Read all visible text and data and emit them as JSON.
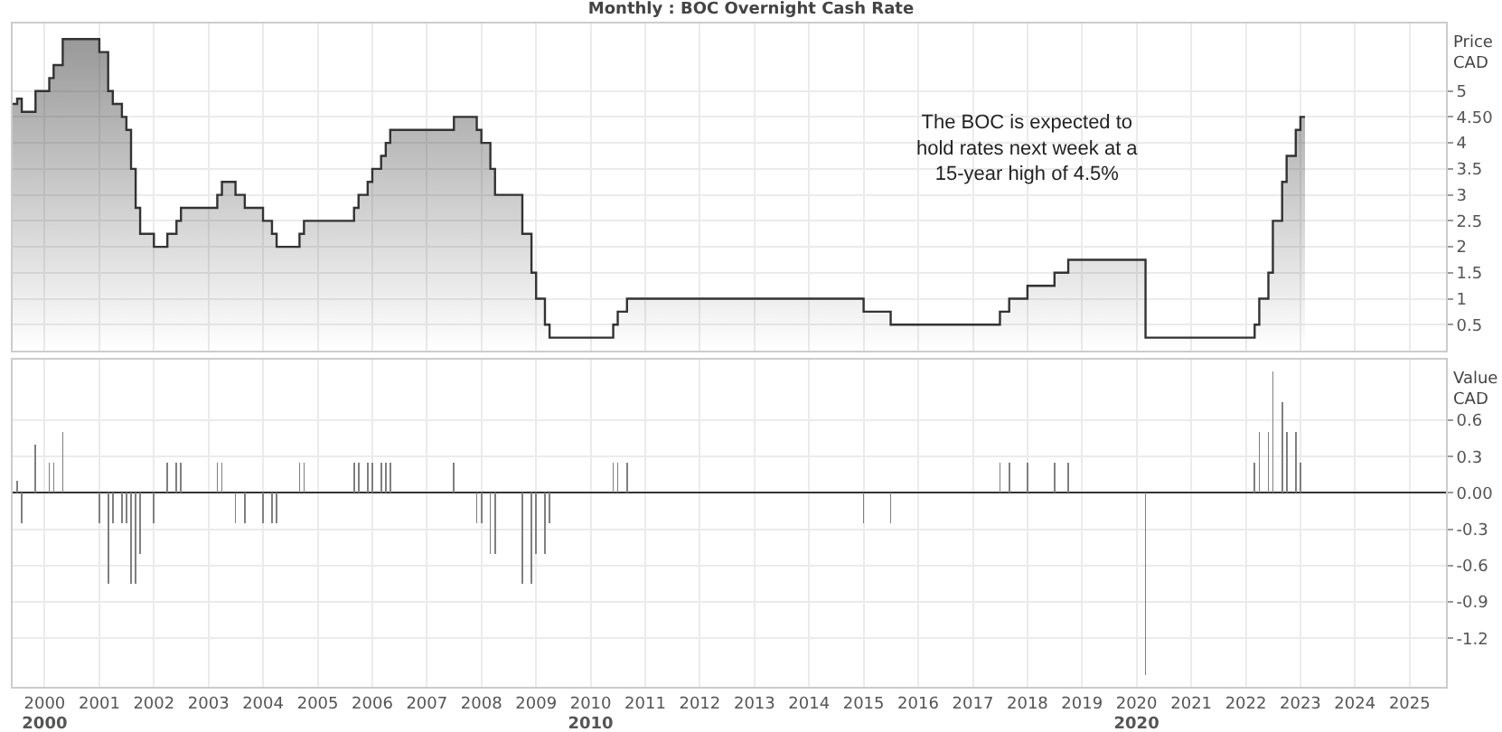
{
  "chart_data": [
    {
      "type": "area",
      "title": "Monthly : BOC Overnight Cash Rate",
      "ylabel": "Price\nCAD",
      "annotations": [
        "The BOC is expected to\nhold rates next week at a\n15-year high of 4.5%"
      ],
      "x": [
        "1999-06",
        "1999-07",
        "1999-07",
        "1999-08",
        "1999-08",
        "1999-11",
        "1999-11",
        "2000-02",
        "2000-02",
        "2000-03",
        "2000-03",
        "2000-05",
        "2000-05",
        "2001-01",
        "2001-01",
        "2001-03",
        "2001-03",
        "2001-04",
        "2001-04",
        "2001-06",
        "2001-06",
        "2001-07",
        "2001-07",
        "2001-08",
        "2001-08",
        "2001-09",
        "2001-09",
        "2001-10",
        "2001-10",
        "2002-01",
        "2002-01",
        "2002-04",
        "2002-04",
        "2002-06",
        "2002-06",
        "2002-07",
        "2002-07",
        "2003-03",
        "2003-03",
        "2003-04",
        "2003-04",
        "2003-07",
        "2003-07",
        "2003-09",
        "2003-09",
        "2004-01",
        "2004-01",
        "2004-03",
        "2004-03",
        "2004-04",
        "2004-04",
        "2004-09",
        "2004-09",
        "2004-10",
        "2004-10",
        "2005-09",
        "2005-09",
        "2005-10",
        "2005-10",
        "2005-12",
        "2005-12",
        "2006-01",
        "2006-01",
        "2006-03",
        "2006-03",
        "2006-04",
        "2006-04",
        "2006-05",
        "2006-05",
        "2007-07",
        "2007-07",
        "2007-12",
        "2007-12",
        "2008-01",
        "2008-01",
        "2008-03",
        "2008-03",
        "2008-04",
        "2008-04",
        "2008-10",
        "2008-10",
        "2008-12",
        "2008-12",
        "2009-01",
        "2009-01",
        "2009-03",
        "2009-03",
        "2009-04",
        "2009-04",
        "2010-06",
        "2010-06",
        "2010-07",
        "2010-07",
        "2010-09",
        "2010-09",
        "2015-01",
        "2015-01",
        "2015-07",
        "2015-07",
        "2017-07",
        "2017-07",
        "2017-09",
        "2017-09",
        "2018-01",
        "2018-01",
        "2018-07",
        "2018-07",
        "2018-10",
        "2018-10",
        "2020-03",
        "2020-03",
        "2022-03",
        "2022-03",
        "2022-04",
        "2022-04",
        "2022-06",
        "2022-06",
        "2022-07",
        "2022-07",
        "2022-09",
        "2022-09",
        "2022-10",
        "2022-10",
        "2022-12",
        "2022-12",
        "2023-01",
        "2023-01",
        "2023-02"
      ],
      "series": [
        {
          "color": "#333333",
          "values": [
            4.75,
            4.75,
            4.85,
            4.85,
            4.6,
            4.6,
            5.0,
            5.0,
            5.25,
            5.25,
            5.5,
            5.5,
            6.0,
            6.0,
            5.75,
            5.75,
            5.0,
            5.0,
            4.75,
            4.75,
            4.5,
            4.5,
            4.25,
            4.25,
            3.5,
            3.5,
            2.75,
            2.75,
            2.25,
            2.25,
            2.0,
            2.0,
            2.25,
            2.25,
            2.5,
            2.5,
            2.75,
            2.75,
            3.0,
            3.0,
            3.25,
            3.25,
            3.0,
            3.0,
            2.75,
            2.75,
            2.5,
            2.5,
            2.25,
            2.25,
            2.0,
            2.0,
            2.25,
            2.25,
            2.5,
            2.5,
            2.75,
            2.75,
            3.0,
            3.0,
            3.25,
            3.25,
            3.5,
            3.5,
            3.75,
            3.75,
            4.0,
            4.0,
            4.25,
            4.25,
            4.5,
            4.5,
            4.25,
            4.25,
            4.0,
            4.0,
            3.5,
            3.5,
            3.0,
            3.0,
            2.25,
            2.25,
            1.5,
            1.5,
            1.0,
            1.0,
            0.5,
            0.5,
            0.25,
            0.25,
            0.5,
            0.5,
            0.75,
            0.75,
            1.0,
            1.0,
            0.75,
            0.75,
            0.5,
            0.5,
            0.75,
            0.75,
            1.0,
            1.0,
            1.25,
            1.25,
            1.5,
            1.5,
            1.75,
            1.75,
            0.25,
            0.25,
            0.5,
            0.5,
            1.0,
            1.0,
            1.5,
            1.5,
            2.5,
            2.5,
            3.25,
            3.25,
            3.75,
            3.75,
            4.25,
            4.25,
            4.5,
            4.5
          ]
        }
      ],
      "xlim": [
        "1999-06-01",
        "2025-09-01"
      ],
      "xticks": [
        "2000",
        "2001",
        "2002",
        "2003",
        "2004",
        "2005",
        "2006",
        "2007",
        "2008",
        "2009",
        "2010",
        "2011",
        "2012",
        "2013",
        "2014",
        "2015",
        "2016",
        "2017",
        "2018",
        "2019",
        "2020",
        "2021",
        "2022",
        "2023",
        "2024",
        "2025"
      ],
      "ylim": [
        0,
        6.3
      ],
      "yticks": [
        0.5,
        1,
        1.5,
        2,
        2.5,
        3,
        3.5,
        4,
        {
          "value": 4.5,
          "label": "4.50"
        },
        5
      ],
      "grid": true,
      "tick_labels": "y"
    },
    {
      "type": "bar",
      "ylabel": "Value\nCAD",
      "x2lim": [
        "1999-06-01",
        "2025-09-01"
      ],
      "x2ticks": [
        "2000",
        "2010",
        "2020"
      ],
      "x": [
        "1999-07",
        "1999-08",
        "1999-11",
        "2000-02",
        "2000-03",
        "2000-05",
        "2001-01",
        "2001-03",
        "2001-04",
        "2001-06",
        "2001-07",
        "2001-08",
        "2001-09",
        "2001-10",
        "2002-01",
        "2002-04",
        "2002-06",
        "2002-07",
        "2003-03",
        "2003-04",
        "2003-07",
        "2003-09",
        "2004-01",
        "2004-03",
        "2004-04",
        "2004-09",
        "2004-10",
        "2005-09",
        "2005-10",
        "2005-12",
        "2006-01",
        "2006-03",
        "2006-04",
        "2006-05",
        "2007-07",
        "2007-12",
        "2008-01",
        "2008-03",
        "2008-04",
        "2008-10",
        "2008-12",
        "2009-01",
        "2009-03",
        "2009-04",
        "2010-06",
        "2010-07",
        "2010-09",
        "2015-01",
        "2015-07",
        "2017-07",
        "2017-09",
        "2018-01",
        "2018-07",
        "2018-10",
        "2020-03",
        "2022-03",
        "2022-04",
        "2022-06",
        "2022-07",
        "2022-09",
        "2022-10",
        "2022-12",
        "2023-01"
      ],
      "series": [
        {
          "color": "#808080",
          "values": [
            0.1,
            -0.25,
            0.4,
            0.25,
            0.25,
            0.5,
            -0.25,
            -0.75,
            -0.25,
            -0.25,
            -0.25,
            -0.75,
            -0.75,
            -0.5,
            -0.25,
            0.25,
            0.25,
            0.25,
            0.25,
            0.25,
            -0.25,
            -0.25,
            -0.25,
            -0.25,
            -0.25,
            0.25,
            0.25,
            0.25,
            0.25,
            0.25,
            0.25,
            0.25,
            0.25,
            0.25,
            0.25,
            -0.25,
            -0.25,
            -0.5,
            -0.5,
            -0.75,
            -0.75,
            -0.5,
            -0.5,
            -0.25,
            0.25,
            0.25,
            0.25,
            -0.25,
            -0.25,
            0.25,
            0.25,
            0.25,
            0.25,
            0.25,
            -1.5,
            0.25,
            0.5,
            0.5,
            1.0,
            0.75,
            0.5,
            0.5,
            0.25
          ]
        }
      ],
      "xlim": [
        "1999-06-01",
        "2025-09-01"
      ],
      "xticks": [
        "2000",
        "2001",
        "2002",
        "2003",
        "2004",
        "2005",
        "2006",
        "2007",
        "2008",
        "2009",
        "2010",
        "2011",
        "2012",
        "2013",
        "2014",
        "2015",
        "2016",
        "2017",
        "2018",
        "2019",
        "2020",
        "2021",
        "2022",
        "2023",
        "2024",
        "2025"
      ],
      "ylim": [
        -1.6,
        1.1
      ],
      "yticks": [
        -1.2,
        -0.9,
        -0.6,
        -0.3,
        {
          "value": 0,
          "label": "0.00"
        },
        0.3,
        0.6
      ],
      "grid": true
    }
  ]
}
